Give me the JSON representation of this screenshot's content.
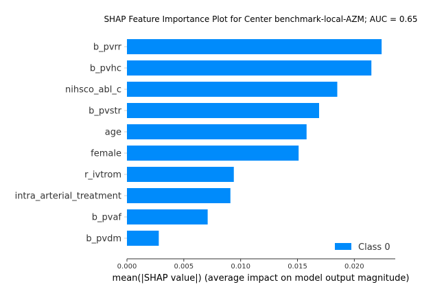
{
  "chart_data": {
    "type": "bar",
    "orientation": "horizontal",
    "title": "SHAP Feature Importance Plot for Center benchmark-local-AZM; AUC = 0.65",
    "xlabel": "mean(|SHAP value|) (average impact on model output magnitude)",
    "ylabel": "",
    "categories": [
      "b_pvrr",
      "b_pvhc",
      "nihsco_abl_c",
      "b_pvstr",
      "age",
      "female",
      "r_ivtrom",
      "intra_arterial_treatment",
      "b_pvaf",
      "b_pvdm"
    ],
    "series": [
      {
        "name": "Class 0",
        "color": "#008bfb",
        "values": [
          0.0224,
          0.0215,
          0.0185,
          0.0169,
          0.0158,
          0.0151,
          0.0094,
          0.0091,
          0.0071,
          0.0028
        ]
      }
    ],
    "xlim": [
      0,
      0.0236
    ],
    "xticks": [
      0.0,
      0.005,
      0.01,
      0.015,
      0.02
    ],
    "xtick_labels": [
      "0.000",
      "0.005",
      "0.010",
      "0.015",
      "0.020"
    ],
    "grid": false,
    "legend_position": "bottom-right"
  }
}
